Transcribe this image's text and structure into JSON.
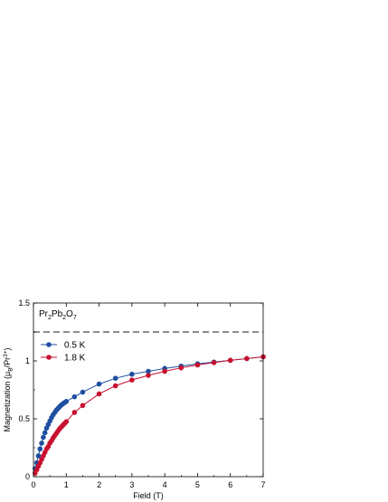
{
  "chart_data": {
    "type": "line",
    "xlabel": "Field (T)",
    "ylabel": "Magnetization (μB/Pr3+)",
    "ylabel_parts": {
      "prefix": "Magnetization (μ",
      "sub": "B",
      "mid": "/Pr",
      "sup": "3+",
      "suffix": ")"
    },
    "xlim": [
      0,
      7
    ],
    "ylim": [
      0,
      1.5
    ],
    "xticks": [
      0,
      1,
      2,
      3,
      4,
      5,
      6,
      7
    ],
    "xtick_labels": [
      "0",
      "1",
      "2",
      "3",
      "4",
      "5",
      "6",
      "7"
    ],
    "yticks": [
      0,
      0.5,
      1,
      1.5
    ],
    "ytick_labels": [
      "0",
      "0.5",
      "1",
      "1.5"
    ],
    "grid": false,
    "legend_position": "upper-left",
    "annotation": {
      "text": "Pr2Pb2O7",
      "parts": [
        {
          "t": "Pr",
          "s": ""
        },
        {
          "t": "2",
          "s": "sub"
        },
        {
          "t": "Pb",
          "s": ""
        },
        {
          "t": "2",
          "s": "sub"
        },
        {
          "t": "O",
          "s": ""
        },
        {
          "t": "7",
          "s": "sub"
        }
      ]
    },
    "reference_line": {
      "y": 1.25,
      "style": "dashed"
    },
    "series": [
      {
        "name": "0.5 K",
        "color": "#1f4fa0",
        "x": [
          0.05,
          0.1,
          0.15,
          0.2,
          0.25,
          0.3,
          0.35,
          0.4,
          0.45,
          0.5,
          0.55,
          0.6,
          0.65,
          0.7,
          0.75,
          0.8,
          0.85,
          0.9,
          0.95,
          1.0,
          1.25,
          1.5,
          2.0,
          2.5,
          3.0,
          3.5,
          4.0,
          4.5,
          5.0,
          5.5,
          6.0,
          6.5,
          7.0
        ],
        "y": [
          0.07,
          0.12,
          0.18,
          0.24,
          0.29,
          0.34,
          0.38,
          0.42,
          0.45,
          0.48,
          0.51,
          0.535,
          0.555,
          0.575,
          0.59,
          0.605,
          0.62,
          0.63,
          0.64,
          0.65,
          0.69,
          0.73,
          0.8,
          0.85,
          0.885,
          0.91,
          0.935,
          0.955,
          0.975,
          0.99,
          1.005,
          1.02,
          1.035
        ]
      },
      {
        "name": "1.8 K",
        "color": "#c8102e",
        "x": [
          0.05,
          0.1,
          0.15,
          0.2,
          0.25,
          0.3,
          0.35,
          0.4,
          0.45,
          0.5,
          0.55,
          0.6,
          0.65,
          0.7,
          0.75,
          0.8,
          0.85,
          0.9,
          0.95,
          1.0,
          1.25,
          1.5,
          2.0,
          2.5,
          3.0,
          3.5,
          4.0,
          4.5,
          5.0,
          5.5,
          6.0,
          6.5,
          7.0
        ],
        "y": [
          0.03,
          0.06,
          0.09,
          0.12,
          0.15,
          0.18,
          0.21,
          0.24,
          0.26,
          0.29,
          0.31,
          0.335,
          0.355,
          0.375,
          0.395,
          0.415,
          0.43,
          0.445,
          0.46,
          0.475,
          0.555,
          0.615,
          0.715,
          0.785,
          0.835,
          0.875,
          0.91,
          0.94,
          0.965,
          0.985,
          1.005,
          1.02,
          1.035
        ]
      }
    ]
  }
}
